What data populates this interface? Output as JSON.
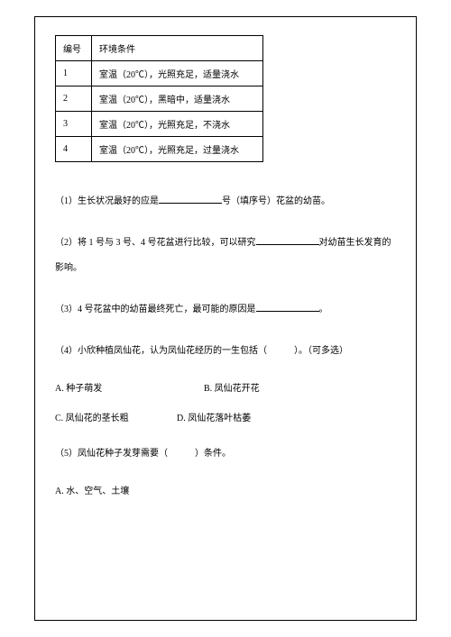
{
  "table": {
    "headers": [
      "编号",
      "环境条件"
    ],
    "rows": [
      [
        "1",
        "室温（20℃），光照充足，适量浇水"
      ],
      [
        "2",
        "室温（20℃），黑暗中，适量浇水"
      ],
      [
        "3",
        "室温（20℃），光照充足，不浇水"
      ],
      [
        "4",
        "室温（20℃），光照充足，过量浇水"
      ]
    ]
  },
  "q1": {
    "pre": "（1）生长状况最好的应是",
    "post": "号（填序号）花盆的幼苗。"
  },
  "q2": {
    "pre": "（2）将 1 号与 3 号、4 号花盆进行比较，可以研究",
    "post": "对幼苗生长发育的影响。"
  },
  "q3": {
    "pre": "（3）4 号花盆中的幼苗最终死亡，最可能的原因是",
    "post": "。"
  },
  "q4": {
    "text": "（4）小欣种植凤仙花，认为凤仙花经历的一生包括（　　　）。（可多选）",
    "options": {
      "a": "A. 种子萌发",
      "b": "B. 凤仙花开花",
      "c": "C. 凤仙花的茎长粗",
      "d": "D. 凤仙花落叶枯萎"
    }
  },
  "q5": {
    "text": "（5）凤仙花种子发芽需要（　　　）条件。",
    "options": {
      "a": "A. 水、空气、土壤"
    }
  }
}
